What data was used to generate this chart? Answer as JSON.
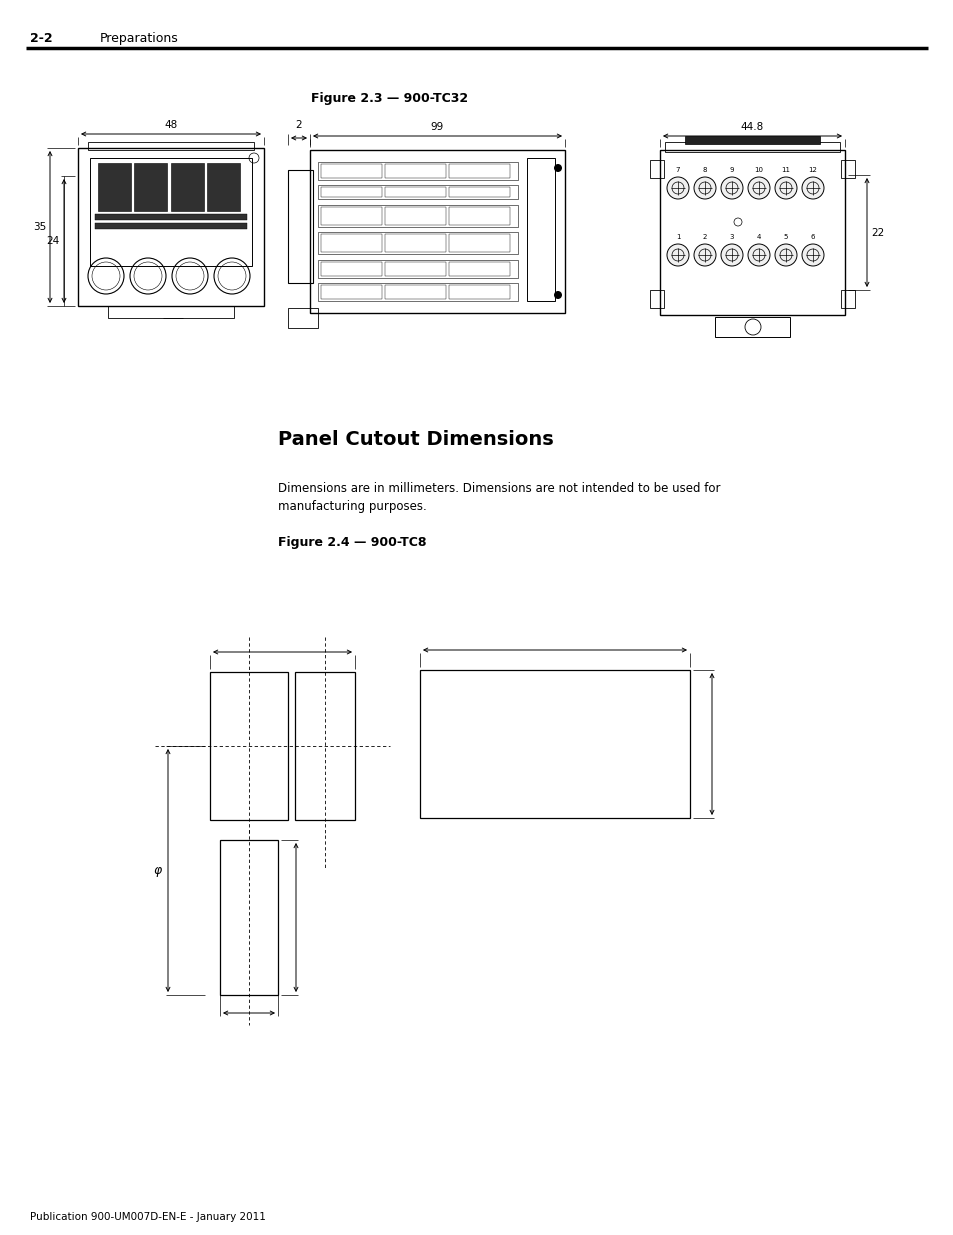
{
  "page_header_number": "2-2",
  "page_header_text": "Preparations",
  "figure1_title": "Figure 2.3 — 900-TC32",
  "section_title": "Panel Cutout Dimensions",
  "body_text_line1": "Dimensions are in millimeters. Dimensions are not intended to be used for",
  "body_text_line2": "manufacturing purposes.",
  "figure2_title": "Figure 2.4 — 900-TC8",
  "footer_text": "Publication 900-UM007D-EN-E - January 2011",
  "bg_color": "#ffffff",
  "dim_48": "48",
  "dim_35": "35",
  "dim_24": "24",
  "dim_99": "99",
  "dim_2": "2",
  "dim_44_8": "44.8",
  "dim_22": "22",
  "phi_symbol": "φ"
}
